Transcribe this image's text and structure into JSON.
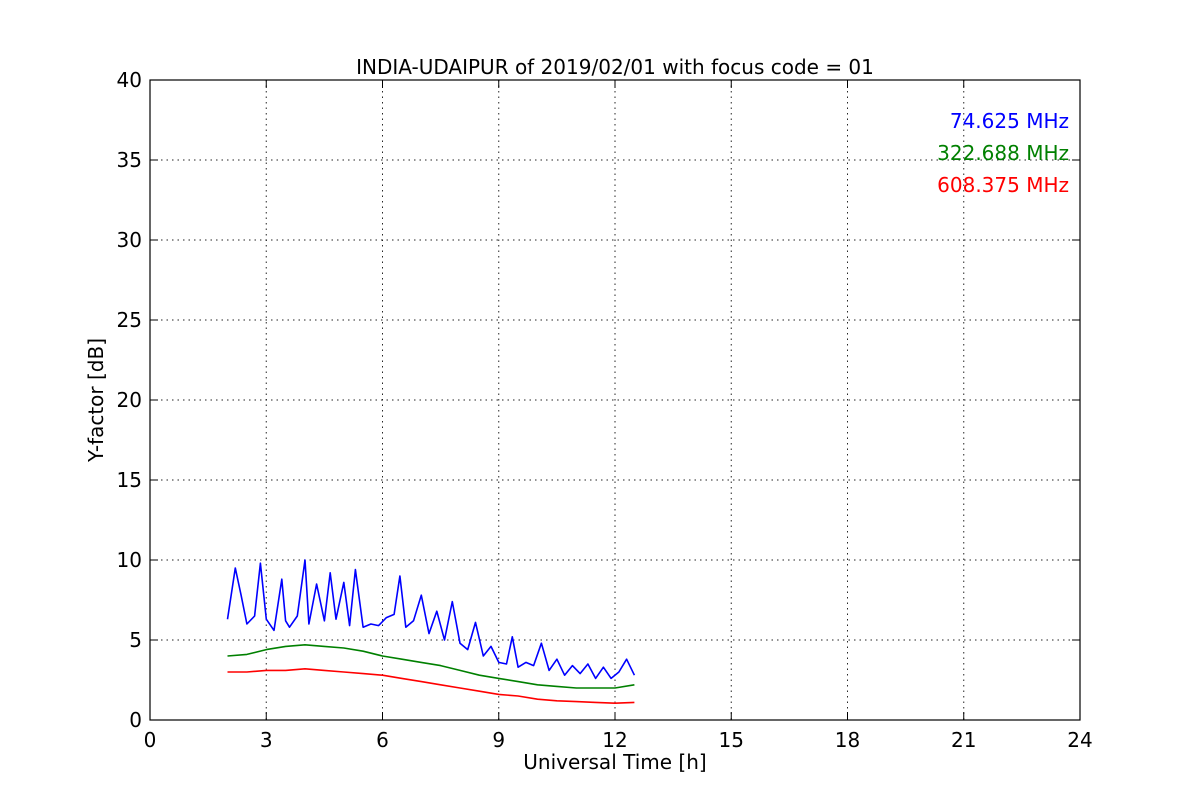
{
  "chart_data": {
    "type": "line",
    "title": "INDIA-UDAIPUR of 2019/02/01 with focus code = 01",
    "xlabel": "Universal Time [h]",
    "ylabel": "Y-factor [dB]",
    "xlim": [
      0,
      24
    ],
    "ylim": [
      0,
      40
    ],
    "xticks": [
      0,
      3,
      6,
      9,
      12,
      15,
      18,
      21,
      24
    ],
    "yticks": [
      0,
      5,
      10,
      15,
      20,
      25,
      30,
      35,
      40
    ],
    "grid": true,
    "legend_position": "top-right",
    "series": [
      {
        "name": "74.625 MHz",
        "color": "#0000ff",
        "x": [
          2.0,
          2.2,
          2.35,
          2.5,
          2.7,
          2.85,
          3.0,
          3.2,
          3.4,
          3.5,
          3.6,
          3.8,
          4.0,
          4.1,
          4.3,
          4.5,
          4.65,
          4.8,
          5.0,
          5.15,
          5.3,
          5.5,
          5.7,
          5.9,
          6.1,
          6.3,
          6.45,
          6.6,
          6.8,
          7.0,
          7.2,
          7.4,
          7.6,
          7.8,
          8.0,
          8.2,
          8.4,
          8.6,
          8.8,
          9.0,
          9.2,
          9.35,
          9.5,
          9.7,
          9.9,
          10.1,
          10.3,
          10.5,
          10.7,
          10.9,
          11.1,
          11.3,
          11.5,
          11.7,
          11.9,
          12.1,
          12.3,
          12.5
        ],
        "y": [
          6.3,
          9.5,
          7.8,
          6.0,
          6.5,
          9.8,
          6.3,
          5.6,
          8.8,
          6.2,
          5.8,
          6.5,
          10.0,
          6.0,
          8.5,
          6.2,
          9.2,
          6.3,
          8.6,
          5.9,
          9.4,
          5.8,
          6.0,
          5.9,
          6.4,
          6.6,
          9.0,
          5.8,
          6.2,
          7.8,
          5.4,
          6.8,
          5.0,
          7.4,
          4.8,
          4.4,
          6.1,
          4.0,
          4.6,
          3.6,
          3.5,
          5.2,
          3.3,
          3.6,
          3.4,
          4.8,
          3.1,
          3.8,
          2.8,
          3.4,
          2.9,
          3.5,
          2.6,
          3.3,
          2.6,
          3.0,
          3.8,
          2.8
        ]
      },
      {
        "name": "322.688 MHz",
        "color": "#008000",
        "x": [
          2.0,
          2.5,
          3.0,
          3.5,
          4.0,
          4.5,
          5.0,
          5.5,
          6.0,
          6.5,
          7.0,
          7.5,
          8.0,
          8.5,
          9.0,
          9.5,
          10.0,
          10.5,
          11.0,
          11.5,
          12.0,
          12.5
        ],
        "y": [
          4.0,
          4.1,
          4.4,
          4.6,
          4.7,
          4.6,
          4.5,
          4.3,
          4.0,
          3.8,
          3.6,
          3.4,
          3.1,
          2.8,
          2.6,
          2.4,
          2.2,
          2.1,
          2.0,
          2.0,
          2.0,
          2.2
        ]
      },
      {
        "name": "608.375 MHz",
        "color": "#ff0000",
        "x": [
          2.0,
          2.5,
          3.0,
          3.5,
          4.0,
          4.5,
          5.0,
          5.5,
          6.0,
          6.5,
          7.0,
          7.5,
          8.0,
          8.5,
          9.0,
          9.5,
          10.0,
          10.5,
          11.0,
          11.5,
          12.0,
          12.5
        ],
        "y": [
          3.0,
          3.0,
          3.1,
          3.1,
          3.2,
          3.1,
          3.0,
          2.9,
          2.8,
          2.6,
          2.4,
          2.2,
          2.0,
          1.8,
          1.6,
          1.5,
          1.3,
          1.2,
          1.15,
          1.1,
          1.05,
          1.1
        ]
      }
    ]
  }
}
